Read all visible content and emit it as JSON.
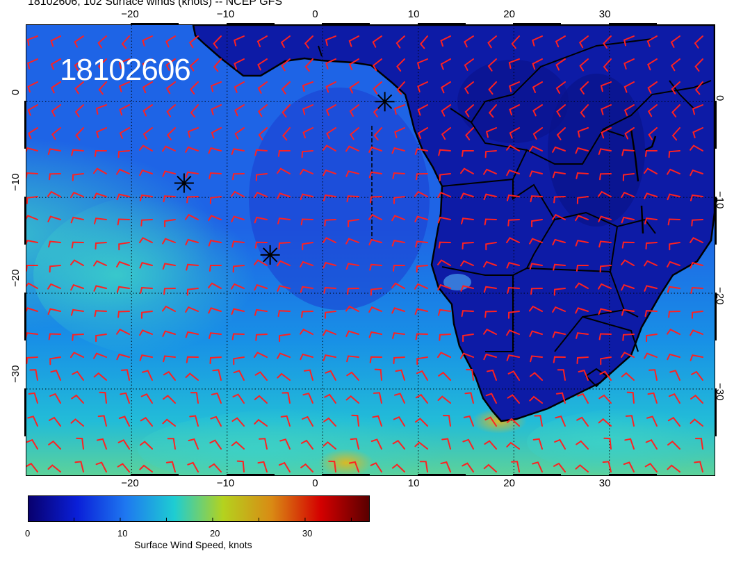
{
  "title": "18102606, 102 Surface winds (knots) -- NCEP GFS",
  "map": {
    "timestamp": "18102606",
    "projection": "cylindrical equidistant",
    "lon_range": [
      -31,
      41
    ],
    "lat_range": [
      8,
      -39
    ],
    "lon_ticks": [
      "-20",
      "-10",
      "0",
      "10",
      "20",
      "30"
    ],
    "lat_ticks": [
      "0",
      "-10",
      "-20",
      "-30"
    ],
    "gridlines": "dotted",
    "wind_barb_color": "#ff2020",
    "coastline_color": "#000000",
    "storm_markers": [
      {
        "lon": 6.5,
        "lat": 0.0
      },
      {
        "lon": -14.5,
        "lat": -8.5
      },
      {
        "lon": -5.5,
        "lat": -16.0
      }
    ]
  },
  "colorbar": {
    "title": "Surface Wind Speed, knots",
    "tick_labels": [
      "0",
      "10",
      "20",
      "30"
    ],
    "range": [
      0,
      37
    ],
    "colors": [
      "#08006e",
      "#0a1fd8",
      "#1e78f0",
      "#1ecdd2",
      "#b4d21e",
      "#d98a14",
      "#d40000",
      "#5a0000"
    ]
  }
}
